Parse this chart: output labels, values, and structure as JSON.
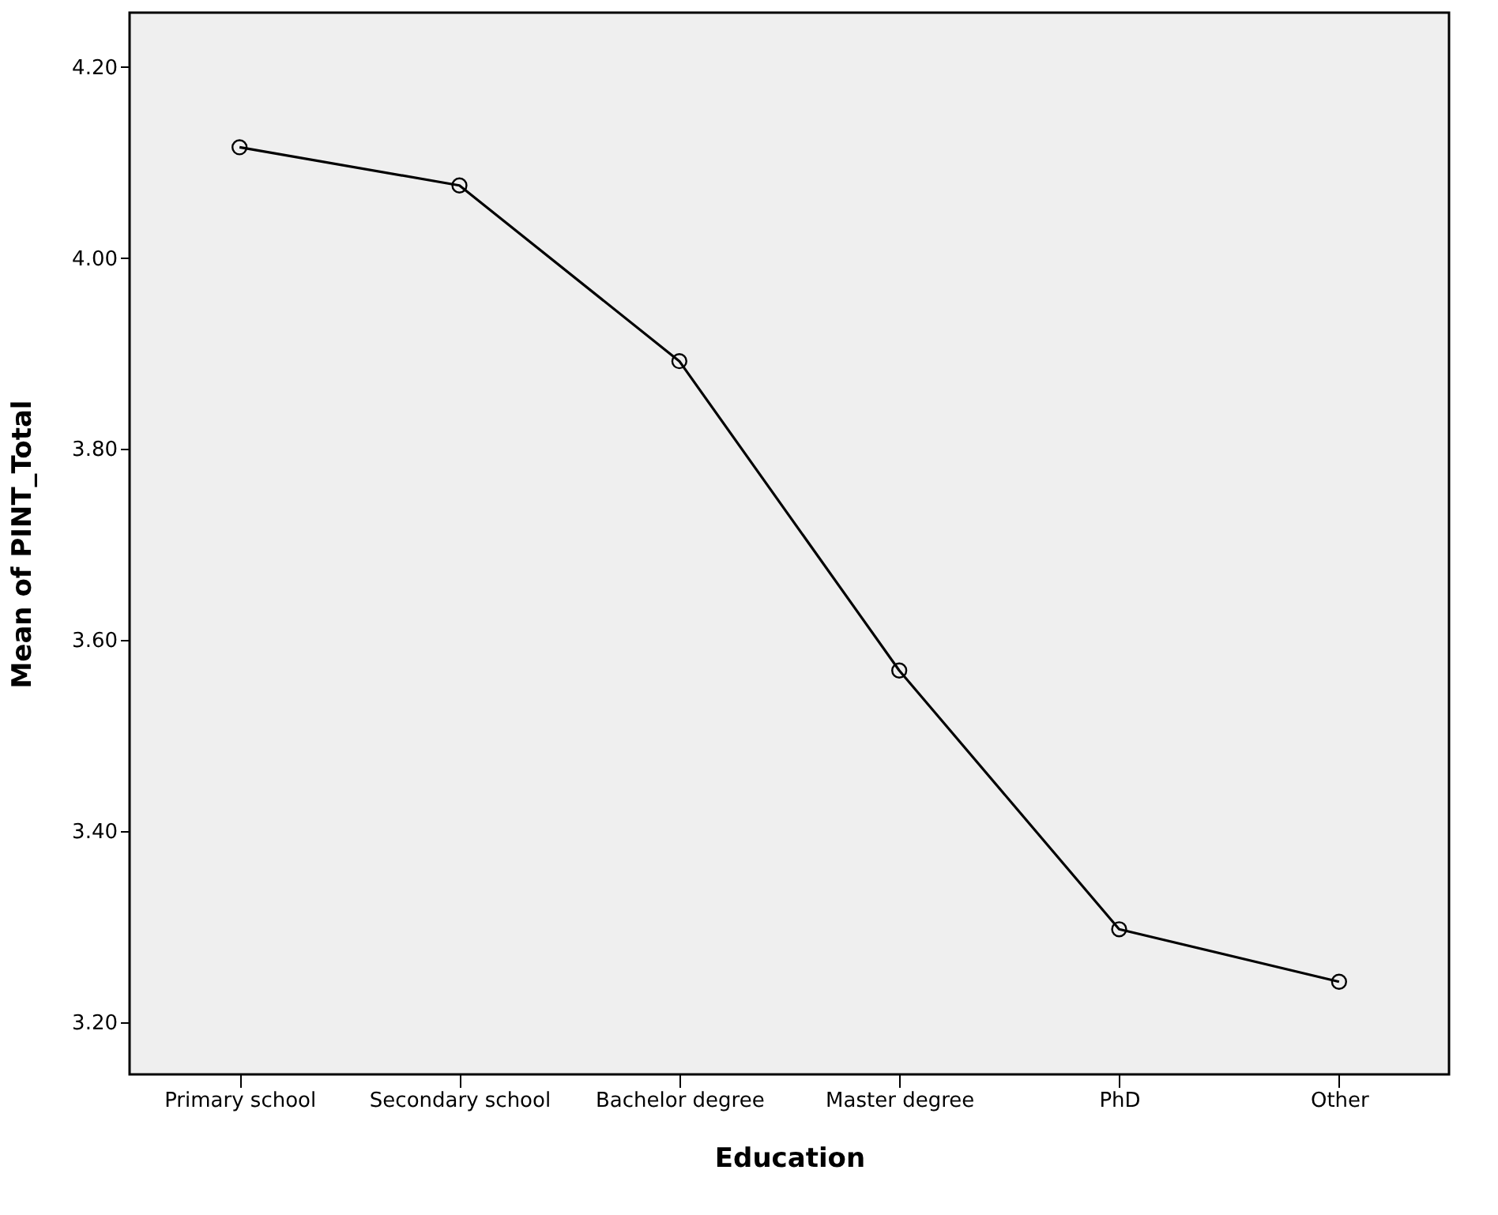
{
  "chart_data": {
    "type": "line",
    "xlabel": "Education",
    "ylabel": "Mean of PINT_Total",
    "categories": [
      "Primary school",
      "Secondary school",
      "Bachelor degree",
      "Master degree",
      "PhD",
      "Other"
    ],
    "series": [
      {
        "color": "#000000",
        "values": [
          4.116,
          4.076,
          3.892,
          3.568,
          3.297,
          3.242
        ]
      }
    ],
    "ylim": [
      3.145,
      4.257
    ],
    "yticks": [
      {
        "value": 3.2,
        "label": "3.20"
      },
      {
        "value": 3.4,
        "label": "3.40"
      },
      {
        "value": 3.6,
        "label": "3.60"
      },
      {
        "value": 3.8,
        "label": "3.80"
      },
      {
        "value": 4.0,
        "label": "4.00"
      },
      {
        "value": 4.2,
        "label": "4.20"
      }
    ],
    "marker": "circle",
    "line_style": "solid"
  }
}
